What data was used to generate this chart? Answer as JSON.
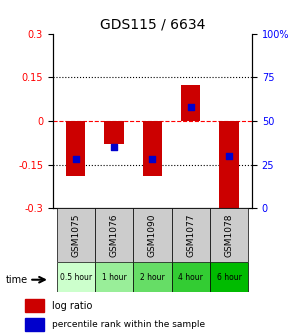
{
  "title": "GDS115 / 6634",
  "samples": [
    "GSM1075",
    "GSM1076",
    "GSM1090",
    "GSM1077",
    "GSM1078"
  ],
  "time_labels": [
    "0.5 hour",
    "1 hour",
    "2 hour",
    "4 hour",
    "6 hour"
  ],
  "time_colors": [
    "#ccffcc",
    "#99ee99",
    "#66dd66",
    "#33cc33",
    "#00bb00"
  ],
  "log_ratio_tops": [
    0.0,
    0.0,
    0.0,
    0.125,
    0.0
  ],
  "log_ratio_bottoms": [
    -0.19,
    -0.08,
    -0.19,
    0.0,
    -0.31
  ],
  "percentile_rank_vals": [
    28,
    35,
    28,
    58,
    30
  ],
  "ylim": [
    -0.3,
    0.3
  ],
  "yticks_left": [
    -0.3,
    -0.15,
    0,
    0.15,
    0.3
  ],
  "yticks_left_labels": [
    "-0.3",
    "-0.15",
    "0",
    "0.15",
    "0.3"
  ],
  "yticks_right": [
    0,
    25,
    50,
    75,
    100
  ],
  "yticks_right_labels": [
    "0",
    "25",
    "50",
    "75",
    "100%"
  ],
  "bar_color": "#cc0000",
  "dot_color": "#0000cc",
  "bar_width": 0.5
}
